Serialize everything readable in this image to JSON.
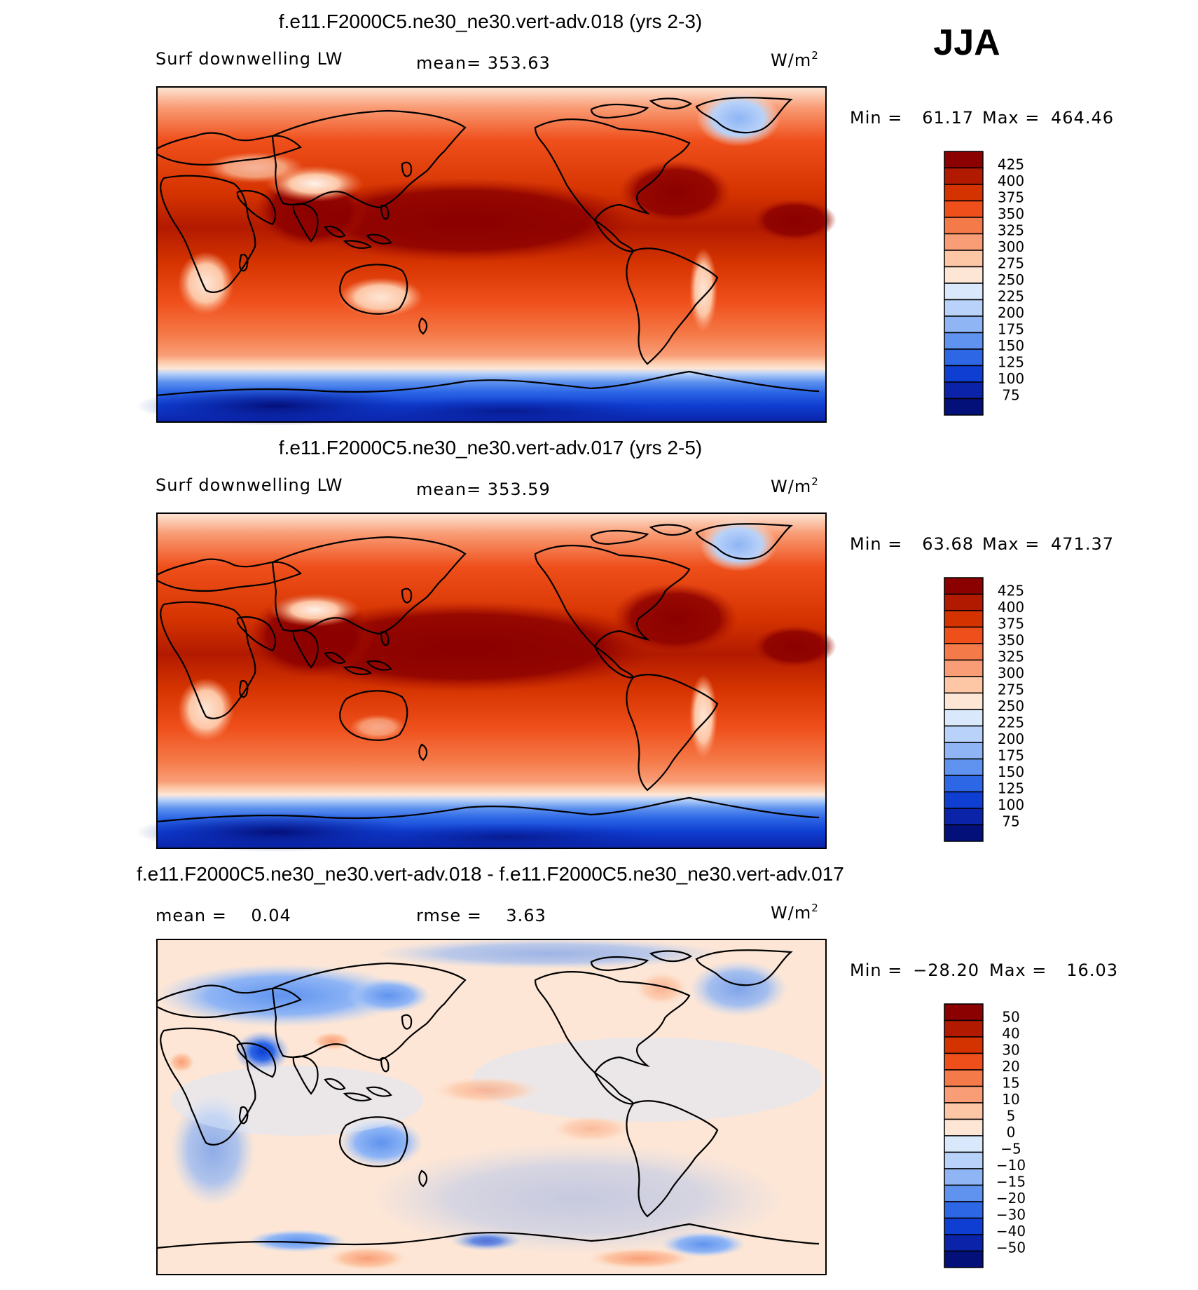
{
  "season": "JJA",
  "chart_data": [
    {
      "type": "heatmap",
      "title": "f.e11.F2000C5.ne30_ne30.vert-adv.018 (yrs 2-3)",
      "variable": "Surf downwelling LW",
      "mean_text": "mean= 353.63",
      "units": "W/m",
      "units_sup": "2",
      "min": 61.17,
      "max": 464.46,
      "minmax_text": {
        "min_label": "Min =",
        "min_value": "61.17",
        "max_label": "Max =",
        "max_value": "464.46"
      },
      "colorbar_labels": [
        "425",
        "400",
        "375",
        "350",
        "325",
        "300",
        "275",
        "250",
        "225",
        "200",
        "175",
        "150",
        "125",
        "100",
        "75"
      ],
      "colorbar_colors": [
        "#8b0000",
        "#b21a00",
        "#d43300",
        "#ef4f1b",
        "#f57a49",
        "#f99d76",
        "#fdc6a5",
        "#fde6d6",
        "#d9e8fb",
        "#b8d2f9",
        "#8fb5f5",
        "#5f93ef",
        "#2d67e6",
        "#0f3ed2",
        "#0a23a8",
        "#04107a"
      ]
    },
    {
      "type": "heatmap",
      "title": "f.e11.F2000C5.ne30_ne30.vert-adv.017 (yrs 2-5)",
      "variable": "Surf downwelling LW",
      "mean_text": "mean= 353.59",
      "units": "W/m",
      "units_sup": "2",
      "min": 63.68,
      "max": 471.37,
      "minmax_text": {
        "min_label": "Min =",
        "min_value": "63.68",
        "max_label": "Max =",
        "max_value": "471.37"
      },
      "colorbar_labels": [
        "425",
        "400",
        "375",
        "350",
        "325",
        "300",
        "275",
        "250",
        "225",
        "200",
        "175",
        "150",
        "125",
        "100",
        "75"
      ],
      "colorbar_colors": [
        "#8b0000",
        "#b21a00",
        "#d43300",
        "#ef4f1b",
        "#f57a49",
        "#f99d76",
        "#fdc6a5",
        "#fde6d6",
        "#d9e8fb",
        "#b8d2f9",
        "#8fb5f5",
        "#5f93ef",
        "#2d67e6",
        "#0f3ed2",
        "#0a23a8",
        "#04107a"
      ]
    },
    {
      "type": "heatmap",
      "title": "f.e11.F2000C5.ne30_ne30.vert-adv.018 - f.e11.F2000C5.ne30_ne30.vert-adv.017",
      "mean_text": "mean =    0.04",
      "rmse_text": "rmse =    3.63",
      "units": "W/m",
      "units_sup": "2",
      "min": -28.2,
      "max": 16.03,
      "minmax_text": {
        "min_label": "Min =",
        "min_value": "−28.20",
        "max_label": "Max =",
        "max_value": "16.03"
      },
      "colorbar_labels": [
        "50",
        "40",
        "30",
        "20",
        "15",
        "10",
        "5",
        "0",
        "−5",
        "−10",
        "−15",
        "−20",
        "−30",
        "−40",
        "−50"
      ],
      "colorbar_colors": [
        "#8b0000",
        "#b21a00",
        "#d43300",
        "#ef4f1b",
        "#f57a49",
        "#f99d76",
        "#fdc6a5",
        "#fde6d6",
        "#d9e8fb",
        "#b8d2f9",
        "#8fb5f5",
        "#5f93ef",
        "#2d67e6",
        "#0f3ed2",
        "#0a23a8",
        "#04107a"
      ]
    }
  ]
}
